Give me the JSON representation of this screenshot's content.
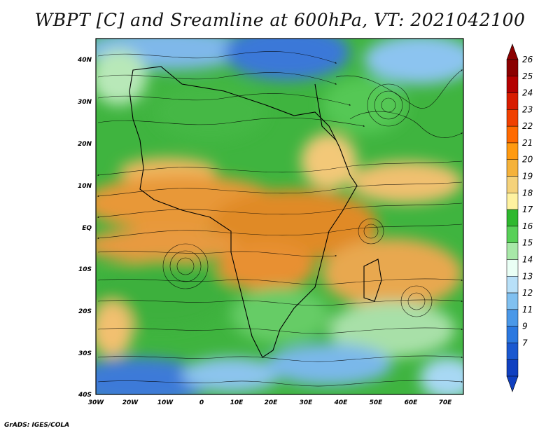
{
  "title": "WBPT [C] and Sreamline at 600hPa, VT: 2021042100",
  "credit": "GrADS: IGES/COLA",
  "map": {
    "lat_labels": [
      "40N",
      "30N",
      "20N",
      "10N",
      "EQ",
      "10S",
      "20S",
      "30S",
      "40S"
    ],
    "lon_labels": [
      "30W",
      "20W",
      "10W",
      "0",
      "10E",
      "20E",
      "30E",
      "40E",
      "50E",
      "60E",
      "70E"
    ]
  },
  "colorbar": {
    "labels": [
      "26",
      "25",
      "24",
      "23",
      "22",
      "21",
      "20",
      "19",
      "18",
      "17",
      "16",
      "15",
      "14",
      "13",
      "12",
      "11",
      "9",
      "7"
    ],
    "colors": [
      "#8b0000",
      "#b40000",
      "#d81c00",
      "#f04000",
      "#ff6a00",
      "#ff9a10",
      "#f5b23a",
      "#f5d27a",
      "#fff2a0",
      "#2eb82e",
      "#58d058",
      "#a8e8a8",
      "#eafff5",
      "#b8e0f8",
      "#80c0f0",
      "#4a98e8",
      "#2b78e0",
      "#1a58d0",
      "#1040c0"
    ]
  }
}
